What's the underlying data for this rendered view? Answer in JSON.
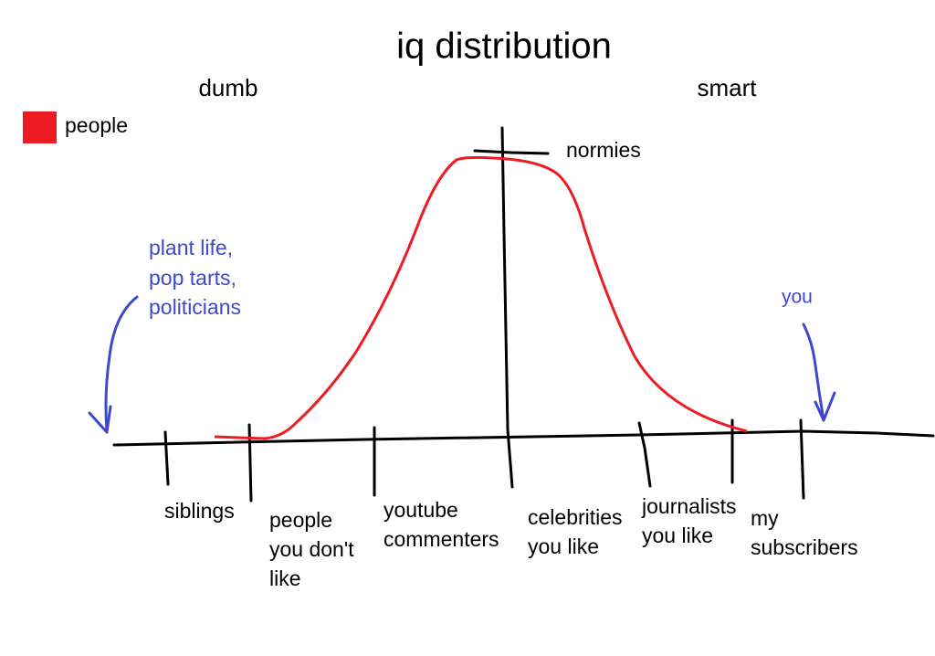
{
  "title": "iq distribution",
  "left_label": "dumb",
  "right_label": "smart",
  "legend": {
    "label": "people"
  },
  "peak_label": "normies",
  "annotations": {
    "left": [
      "plant life,",
      "pop tarts,",
      "politicians"
    ],
    "right": [
      "you"
    ]
  },
  "tick_labels": [
    [
      "siblings"
    ],
    [
      "people",
      "you don't",
      "like"
    ],
    [
      "youtube",
      "commenters"
    ],
    [
      "celebrities",
      "you like"
    ],
    [
      "journalists",
      "you like"
    ],
    [
      "my",
      "subscribers"
    ]
  ]
}
